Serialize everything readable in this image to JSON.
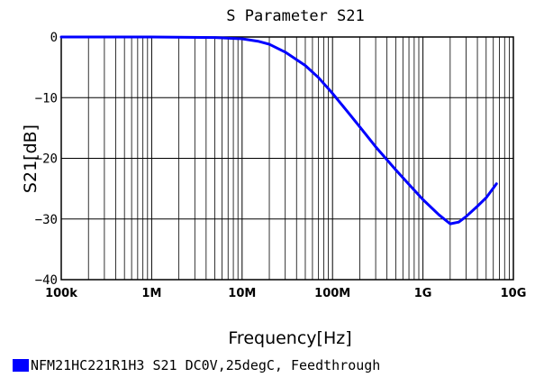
{
  "chart_data": {
    "type": "line",
    "title": "S Parameter S21",
    "xlabel": "Frequency[Hz]",
    "ylabel": "S21[dB]",
    "x_scale": "log",
    "xlim": [
      100000,
      10000000000
    ],
    "ylim": [
      -40,
      0
    ],
    "x_ticks": [
      {
        "value": 100000,
        "label": "100k"
      },
      {
        "value": 1000000,
        "label": "1M"
      },
      {
        "value": 10000000,
        "label": "10M"
      },
      {
        "value": 100000000,
        "label": "100M"
      },
      {
        "value": 1000000000,
        "label": "1G"
      },
      {
        "value": 10000000000,
        "label": "10G"
      }
    ],
    "y_ticks": [
      {
        "value": 0,
        "label": "0"
      },
      {
        "value": -10,
        "label": "-10"
      },
      {
        "value": -20,
        "label": "-20"
      },
      {
        "value": -30,
        "label": "-30"
      },
      {
        "value": -40,
        "label": "-40"
      }
    ],
    "grid": true,
    "legend_position": "bottom-left",
    "series": [
      {
        "name": "NFM21HC221R1H3 S21 DC0V,25degC, Feedthrough",
        "color": "#0000ff",
        "x": [
          100000,
          1000000,
          5000000,
          10000000,
          15000000,
          20000000,
          30000000,
          50000000,
          70000000,
          100000000,
          150000000,
          200000000,
          300000000,
          500000000,
          700000000,
          1000000000,
          1500000000,
          2000000000,
          2500000000,
          3000000000,
          4000000000,
          5000000000,
          6500000000
        ],
        "y": [
          0,
          0,
          -0.1,
          -0.3,
          -0.7,
          -1.2,
          -2.5,
          -4.7,
          -6.7,
          -9.3,
          -12.5,
          -14.8,
          -18.1,
          -21.9,
          -24.3,
          -26.8,
          -29.3,
          -30.8,
          -30.5,
          -29.6,
          -27.9,
          -26.5,
          -24.2
        ]
      }
    ]
  }
}
